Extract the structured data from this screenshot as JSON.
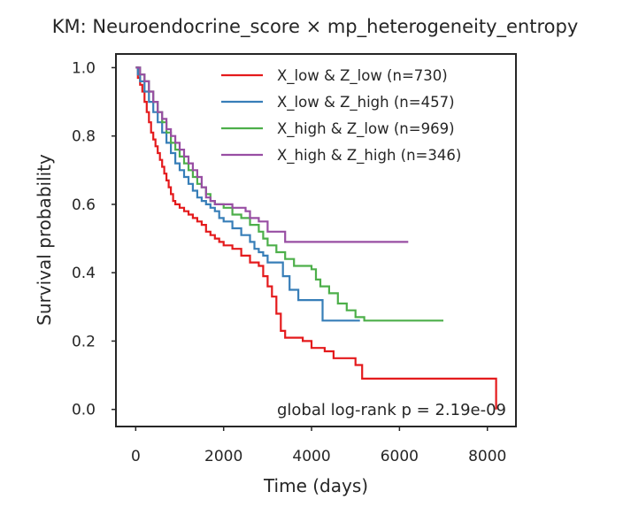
{
  "chart_data": {
    "type": "line",
    "title": "KM: Neuroendocrine_score × mp_heterogeneity_entropy",
    "xlabel": "Time (days)",
    "ylabel": "Survival probability",
    "xlim": [
      -450,
      8650
    ],
    "ylim": [
      -0.05,
      1.04
    ],
    "xticks": [
      0,
      2000,
      4000,
      6000,
      8000
    ],
    "xtick_labels": [
      "0",
      "2000",
      "4000",
      "6000",
      "8000"
    ],
    "yticks": [
      0.0,
      0.2,
      0.4,
      0.6,
      0.8,
      1.0
    ],
    "ytick_labels": [
      "0.0",
      "0.2",
      "0.4",
      "0.6",
      "0.8",
      "1.0"
    ],
    "grid": false,
    "legend_position": "top-right",
    "annotation": "global log-rank p = 2.19e-09",
    "series": [
      {
        "name": "X_low & Z_low (n=730)",
        "color": "#e41a1c",
        "points": [
          [
            0,
            1.0
          ],
          [
            50,
            0.97
          ],
          [
            100,
            0.95
          ],
          [
            150,
            0.93
          ],
          [
            200,
            0.9
          ],
          [
            250,
            0.87
          ],
          [
            300,
            0.84
          ],
          [
            350,
            0.81
          ],
          [
            400,
            0.79
          ],
          [
            450,
            0.77
          ],
          [
            500,
            0.75
          ],
          [
            550,
            0.73
          ],
          [
            600,
            0.71
          ],
          [
            650,
            0.69
          ],
          [
            700,
            0.67
          ],
          [
            750,
            0.65
          ],
          [
            800,
            0.63
          ],
          [
            850,
            0.61
          ],
          [
            900,
            0.6
          ],
          [
            1000,
            0.59
          ],
          [
            1100,
            0.58
          ],
          [
            1200,
            0.57
          ],
          [
            1300,
            0.56
          ],
          [
            1400,
            0.55
          ],
          [
            1500,
            0.54
          ],
          [
            1600,
            0.52
          ],
          [
            1700,
            0.51
          ],
          [
            1800,
            0.5
          ],
          [
            1900,
            0.49
          ],
          [
            2000,
            0.48
          ],
          [
            2200,
            0.47
          ],
          [
            2400,
            0.45
          ],
          [
            2600,
            0.43
          ],
          [
            2800,
            0.42
          ],
          [
            2900,
            0.39
          ],
          [
            3000,
            0.36
          ],
          [
            3100,
            0.33
          ],
          [
            3200,
            0.28
          ],
          [
            3300,
            0.23
          ],
          [
            3400,
            0.21
          ],
          [
            3800,
            0.2
          ],
          [
            4000,
            0.18
          ],
          [
            4300,
            0.17
          ],
          [
            4500,
            0.15
          ],
          [
            4800,
            0.15
          ],
          [
            5000,
            0.13
          ],
          [
            5150,
            0.09
          ],
          [
            8200,
            0.09
          ],
          [
            8200,
            0.0
          ]
        ]
      },
      {
        "name": "X_low & Z_high (n=457)",
        "color": "#377eb8",
        "points": [
          [
            0,
            1.0
          ],
          [
            50,
            0.98
          ],
          [
            100,
            0.96
          ],
          [
            200,
            0.93
          ],
          [
            300,
            0.9
          ],
          [
            400,
            0.87
          ],
          [
            500,
            0.84
          ],
          [
            600,
            0.81
          ],
          [
            700,
            0.78
          ],
          [
            800,
            0.75
          ],
          [
            900,
            0.72
          ],
          [
            1000,
            0.7
          ],
          [
            1100,
            0.68
          ],
          [
            1200,
            0.66
          ],
          [
            1300,
            0.64
          ],
          [
            1400,
            0.62
          ],
          [
            1500,
            0.61
          ],
          [
            1600,
            0.6
          ],
          [
            1700,
            0.59
          ],
          [
            1800,
            0.58
          ],
          [
            1900,
            0.56
          ],
          [
            2000,
            0.55
          ],
          [
            2200,
            0.53
          ],
          [
            2400,
            0.51
          ],
          [
            2600,
            0.49
          ],
          [
            2700,
            0.47
          ],
          [
            2800,
            0.46
          ],
          [
            2900,
            0.45
          ],
          [
            3000,
            0.43
          ],
          [
            3350,
            0.43
          ],
          [
            3350,
            0.39
          ],
          [
            3500,
            0.39
          ],
          [
            3500,
            0.35
          ],
          [
            3700,
            0.35
          ],
          [
            3700,
            0.32
          ],
          [
            4250,
            0.32
          ],
          [
            4250,
            0.26
          ],
          [
            5100,
            0.26
          ]
        ]
      },
      {
        "name": "X_high & Z_low (n=969)",
        "color": "#4daf4a",
        "points": [
          [
            0,
            1.0
          ],
          [
            100,
            0.98
          ],
          [
            200,
            0.96
          ],
          [
            300,
            0.93
          ],
          [
            400,
            0.9
          ],
          [
            500,
            0.87
          ],
          [
            600,
            0.84
          ],
          [
            700,
            0.81
          ],
          [
            800,
            0.78
          ],
          [
            900,
            0.76
          ],
          [
            1000,
            0.74
          ],
          [
            1100,
            0.72
          ],
          [
            1200,
            0.7
          ],
          [
            1300,
            0.68
          ],
          [
            1400,
            0.66
          ],
          [
            1500,
            0.65
          ],
          [
            1600,
            0.63
          ],
          [
            1700,
            0.61
          ],
          [
            1800,
            0.6
          ],
          [
            2000,
            0.59
          ],
          [
            2200,
            0.57
          ],
          [
            2400,
            0.56
          ],
          [
            2600,
            0.54
          ],
          [
            2800,
            0.52
          ],
          [
            2900,
            0.5
          ],
          [
            3000,
            0.48
          ],
          [
            3200,
            0.46
          ],
          [
            3400,
            0.44
          ],
          [
            3600,
            0.42
          ],
          [
            4000,
            0.41
          ],
          [
            4100,
            0.38
          ],
          [
            4200,
            0.36
          ],
          [
            4400,
            0.34
          ],
          [
            4600,
            0.31
          ],
          [
            4800,
            0.29
          ],
          [
            5000,
            0.27
          ],
          [
            5200,
            0.26
          ],
          [
            7000,
            0.26
          ]
        ]
      },
      {
        "name": "X_high & Z_high (n=346)",
        "color": "#984ea3",
        "points": [
          [
            0,
            1.0
          ],
          [
            100,
            0.98
          ],
          [
            200,
            0.96
          ],
          [
            300,
            0.93
          ],
          [
            400,
            0.9
          ],
          [
            500,
            0.87
          ],
          [
            600,
            0.85
          ],
          [
            700,
            0.82
          ],
          [
            800,
            0.8
          ],
          [
            900,
            0.78
          ],
          [
            1000,
            0.76
          ],
          [
            1100,
            0.74
          ],
          [
            1200,
            0.72
          ],
          [
            1300,
            0.7
          ],
          [
            1400,
            0.68
          ],
          [
            1500,
            0.65
          ],
          [
            1600,
            0.62
          ],
          [
            1700,
            0.61
          ],
          [
            1800,
            0.6
          ],
          [
            2200,
            0.59
          ],
          [
            2500,
            0.58
          ],
          [
            2600,
            0.56
          ],
          [
            2800,
            0.55
          ],
          [
            3000,
            0.52
          ],
          [
            3400,
            0.52
          ],
          [
            3400,
            0.49
          ],
          [
            6200,
            0.49
          ]
        ]
      }
    ]
  }
}
